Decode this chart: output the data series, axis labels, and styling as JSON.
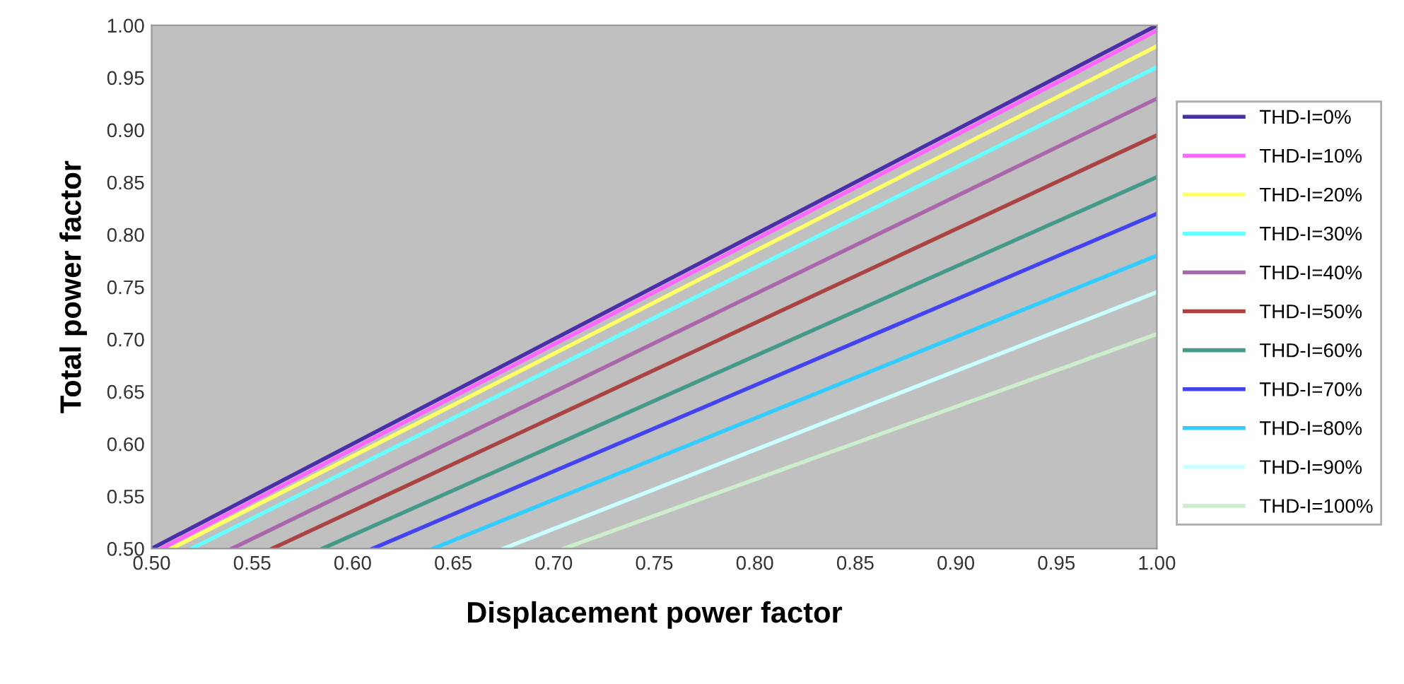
{
  "chart_data": {
    "type": "line",
    "xlabel": "Displacement power factor",
    "ylabel": "Total power factor",
    "xlim": [
      0.5,
      1.0
    ],
    "ylim": [
      0.5,
      1.0
    ],
    "xticks": [
      {
        "value": 0.5,
        "label": "0.50"
      },
      {
        "value": 0.55,
        "label": "0.55"
      },
      {
        "value": 0.6,
        "label": "0.60"
      },
      {
        "value": 0.65,
        "label": "0.65"
      },
      {
        "value": 0.7,
        "label": "0.70"
      },
      {
        "value": 0.75,
        "label": "0.75"
      },
      {
        "value": 0.8,
        "label": "0.80"
      },
      {
        "value": 0.85,
        "label": "0.85"
      },
      {
        "value": 0.9,
        "label": "0.90"
      },
      {
        "value": 0.95,
        "label": "0.95"
      },
      {
        "value": 1.0,
        "label": "1.00"
      }
    ],
    "yticks": [
      {
        "value": 0.5,
        "label": "0.50"
      },
      {
        "value": 0.55,
        "label": "0.55"
      },
      {
        "value": 0.6,
        "label": "0.60"
      },
      {
        "value": 0.65,
        "label": "0.65"
      },
      {
        "value": 0.7,
        "label": "0.70"
      },
      {
        "value": 0.75,
        "label": "0.75"
      },
      {
        "value": 0.8,
        "label": "0.80"
      },
      {
        "value": 0.85,
        "label": "0.85"
      },
      {
        "value": 0.9,
        "label": "0.90"
      },
      {
        "value": 0.95,
        "label": "0.95"
      },
      {
        "value": 1.0,
        "label": "1.00"
      }
    ],
    "grid": false,
    "legend": "right",
    "marker": "none",
    "line_style": "solid",
    "series": [
      {
        "name": "THD-I=0%",
        "color": "#4b2fa8",
        "x": [
          0.5,
          1.0
        ],
        "values": [
          0.5,
          1.0
        ]
      },
      {
        "name": "THD-I=10%",
        "color": "#ff66ff",
        "x": [
          0.505,
          1.0
        ],
        "values": [
          0.5,
          0.995
        ]
      },
      {
        "name": "THD-I=20%",
        "color": "#ffff66",
        "x": [
          0.51,
          1.0
        ],
        "values": [
          0.5,
          0.98
        ]
      },
      {
        "name": "THD-I=30%",
        "color": "#66ffff",
        "x": [
          0.52,
          1.0
        ],
        "values": [
          0.5,
          0.96
        ]
      },
      {
        "name": "THD-I=40%",
        "color": "#aa66aa",
        "x": [
          0.54,
          1.0
        ],
        "values": [
          0.5,
          0.93
        ]
      },
      {
        "name": "THD-I=50%",
        "color": "#aa4444",
        "x": [
          0.56,
          1.0
        ],
        "values": [
          0.5,
          0.895
        ]
      },
      {
        "name": "THD-I=60%",
        "color": "#449988",
        "x": [
          0.585,
          1.0
        ],
        "values": [
          0.5,
          0.855
        ]
      },
      {
        "name": "THD-I=70%",
        "color": "#4444ee",
        "x": [
          0.61,
          1.0
        ],
        "values": [
          0.5,
          0.82
        ]
      },
      {
        "name": "THD-I=80%",
        "color": "#33ccff",
        "x": [
          0.64,
          1.0
        ],
        "values": [
          0.5,
          0.78
        ]
      },
      {
        "name": "THD-I=90%",
        "color": "#ccffff",
        "x": [
          0.675,
          1.0
        ],
        "values": [
          0.5,
          0.745
        ]
      },
      {
        "name": "THD-I=100%",
        "color": "#cceecc",
        "x": [
          0.705,
          1.0
        ],
        "values": [
          0.5,
          0.705
        ]
      }
    ]
  }
}
